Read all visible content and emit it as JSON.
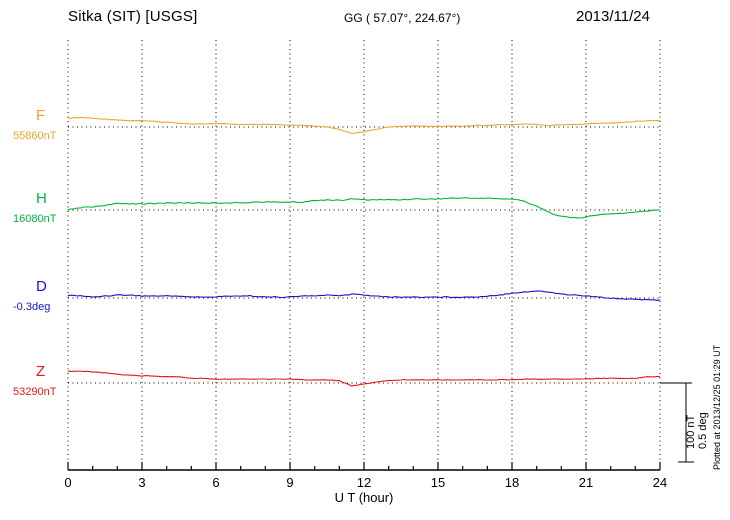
{
  "chart_data": {
    "type": "line",
    "station": "Sitka (SIT)  [USGS]",
    "gg_coords": "GG ( 57.07°, 224.67°)",
    "date": "2013/11/24",
    "xlabel": "U T (hour)",
    "xlim": [
      0,
      24
    ],
    "x_ticks": [
      0,
      3,
      6,
      9,
      12,
      15,
      18,
      21,
      24
    ],
    "x_step_hours": 0.5,
    "grid": "dotted vertical lines every 3 hours, dotted horizontal baseline per trace",
    "legend_position": "left margin, one label per trace",
    "scale_bar": {
      "nt_label": "100 nT",
      "deg_label": "0.5 deg",
      "nT": 100,
      "deg": 0.5
    },
    "plotted_note": "Plotted at 2013/12/25 01:29 UT",
    "series": [
      {
        "name": "F",
        "unit": "nT",
        "baseline_label": "55860nT",
        "baseline": 55860,
        "color": "#f0a32a",
        "values_offset_from_baseline": [
          11,
          12,
          11,
          10,
          9,
          8,
          8,
          7,
          6,
          5,
          4,
          4,
          4,
          4,
          3,
          3,
          3,
          3,
          2,
          2,
          1,
          0,
          -3,
          -8,
          -6,
          -3,
          0,
          1,
          1,
          1,
          1,
          1,
          1,
          2,
          2,
          3,
          3,
          4,
          3,
          2,
          3,
          3,
          4,
          5,
          5,
          6,
          7,
          8,
          8
        ]
      },
      {
        "name": "H",
        "unit": "nT",
        "baseline_label": "16080nT",
        "baseline": 16080,
        "color": "#00b33e",
        "values_offset_from_baseline": [
          0,
          3,
          4,
          6,
          8,
          8,
          8,
          8,
          9,
          9,
          9,
          9,
          9,
          9,
          9,
          10,
          10,
          10,
          10,
          10,
          12,
          13,
          12,
          14,
          13,
          13,
          13,
          13,
          14,
          14,
          14,
          15,
          15,
          15,
          15,
          14,
          14,
          11,
          5,
          -3,
          -8,
          -10,
          -9,
          -6,
          -5,
          -4,
          -3,
          -1,
          0
        ]
      },
      {
        "name": "D",
        "unit": "deg",
        "baseline_label": "-0.3deg",
        "baseline": -0.3,
        "color": "#1515d0",
        "values_offset_from_baseline": [
          0.019,
          0.013,
          0.006,
          0.013,
          0.019,
          0.019,
          0.013,
          0.013,
          0.013,
          0.013,
          0.006,
          0.006,
          0.006,
          0.013,
          0.013,
          0.013,
          0.006,
          0.006,
          0.006,
          0.013,
          0.013,
          0.019,
          0.013,
          0.025,
          0.019,
          0.013,
          0.006,
          0.006,
          0.006,
          0.006,
          0.006,
          0.006,
          0.006,
          0.006,
          0.013,
          0.019,
          0.032,
          0.038,
          0.044,
          0.038,
          0.025,
          0.019,
          0.013,
          0.006,
          0,
          -0.006,
          -0.006,
          -0.013,
          -0.013
        ]
      },
      {
        "name": "Z",
        "unit": "nT",
        "baseline_label": "53290nT",
        "baseline": 53290,
        "color": "#e01818",
        "values_offset_from_baseline": [
          15,
          15,
          14,
          13,
          11,
          10,
          9,
          9,
          8,
          8,
          6,
          6,
          5,
          5,
          5,
          5,
          5,
          5,
          5,
          4,
          4,
          4,
          3,
          -4,
          -1,
          1,
          3,
          4,
          4,
          4,
          4,
          4,
          4,
          4,
          4,
          4,
          4,
          5,
          5,
          5,
          5,
          5,
          5,
          6,
          6,
          6,
          6,
          8,
          8
        ]
      }
    ]
  }
}
